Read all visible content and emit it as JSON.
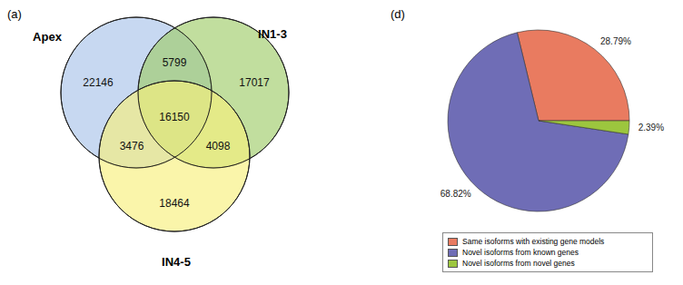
{
  "chart_data": [
    {
      "type": "venn",
      "panel": "(a)",
      "sets": [
        {
          "name": "Apex",
          "color": "#a9c3ea"
        },
        {
          "name": "IN1-3",
          "color": "#9fcd6a"
        },
        {
          "name": "IN4-5",
          "color": "#f8f07c"
        }
      ],
      "regions": [
        {
          "sets": [
            "Apex"
          ],
          "value": 22146
        },
        {
          "sets": [
            "IN1-3"
          ],
          "value": 17017
        },
        {
          "sets": [
            "IN4-5"
          ],
          "value": 18464
        },
        {
          "sets": [
            "Apex",
            "IN1-3"
          ],
          "value": 5799
        },
        {
          "sets": [
            "Apex",
            "IN4-5"
          ],
          "value": 3476
        },
        {
          "sets": [
            "IN1-3",
            "IN4-5"
          ],
          "value": 4098
        },
        {
          "sets": [
            "Apex",
            "IN1-3",
            "IN4-5"
          ],
          "value": 16150
        }
      ]
    },
    {
      "type": "pie",
      "panel": "(d)",
      "categories": [
        "Same isoforms with existing gene models",
        "Novel isoforms from known genes",
        "Novel isoforms from novel genes"
      ],
      "values": [
        28.79,
        68.82,
        2.39
      ],
      "value_labels": [
        "28.79%",
        "68.82%",
        "2.39%"
      ],
      "colors": [
        "#e97b60",
        "#6f6db6",
        "#9cc63e"
      ],
      "data_labels": true,
      "legend": "bottom"
    }
  ]
}
